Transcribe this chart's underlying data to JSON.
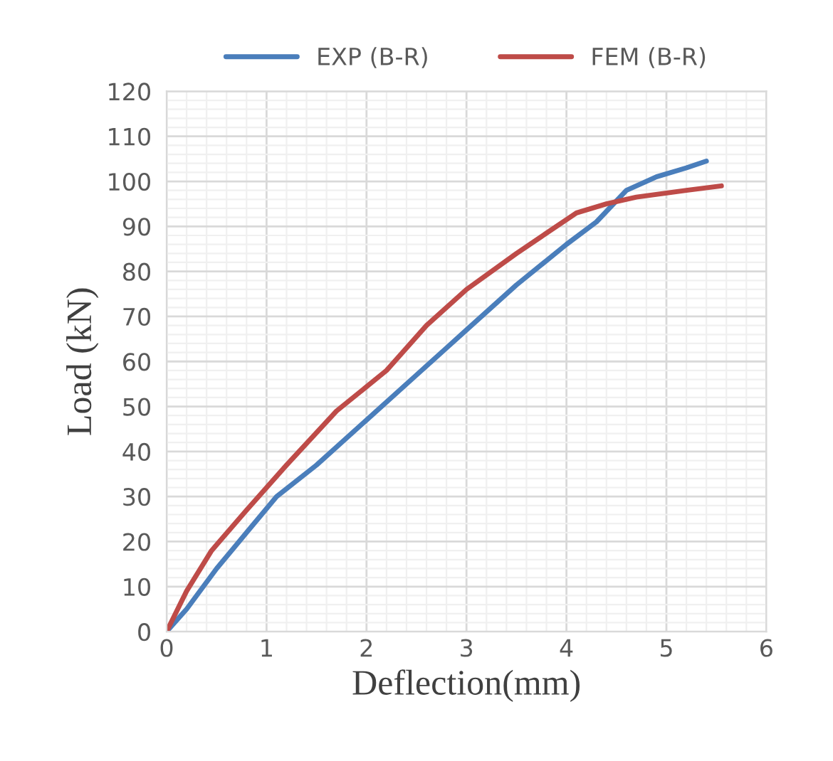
{
  "chart_data": {
    "type": "line",
    "xlabel": "Deflection(mm)",
    "ylabel": "Load (kN)",
    "xlim": [
      0,
      6
    ],
    "xticks": [
      0,
      1,
      2,
      3,
      4,
      5,
      6
    ],
    "ylim": [
      0,
      120
    ],
    "yticks": [
      0,
      10,
      20,
      30,
      40,
      50,
      60,
      70,
      80,
      90,
      100,
      110,
      120
    ],
    "grid": true,
    "legend": "top",
    "marker": "none",
    "line_style": "solid",
    "series": [
      {
        "name": "EXP (B-R)",
        "color": "#4a7ebb",
        "x": [
          0,
          0.2,
          0.5,
          0.8,
          1.1,
          1.5,
          2,
          2.5,
          2.8,
          3,
          3.5,
          4,
          4.3,
          4.6,
          4.9,
          5.2,
          5.4
        ],
        "values": [
          0,
          5,
          14,
          22,
          30,
          37,
          47,
          57,
          63,
          67,
          77,
          86,
          91,
          98,
          101,
          103,
          104.5
        ]
      },
      {
        "name": "FEM (B-R)",
        "color": "#be4b48",
        "x": [
          0,
          0.2,
          0.45,
          0.8,
          1.2,
          1.7,
          2.2,
          2.6,
          3,
          3.5,
          4.1,
          4.4,
          4.7,
          5.2,
          5.55
        ],
        "values": [
          0,
          9,
          18,
          27,
          37,
          49,
          58,
          68,
          76,
          84,
          93,
          95,
          96.5,
          98,
          99
        ]
      }
    ]
  }
}
